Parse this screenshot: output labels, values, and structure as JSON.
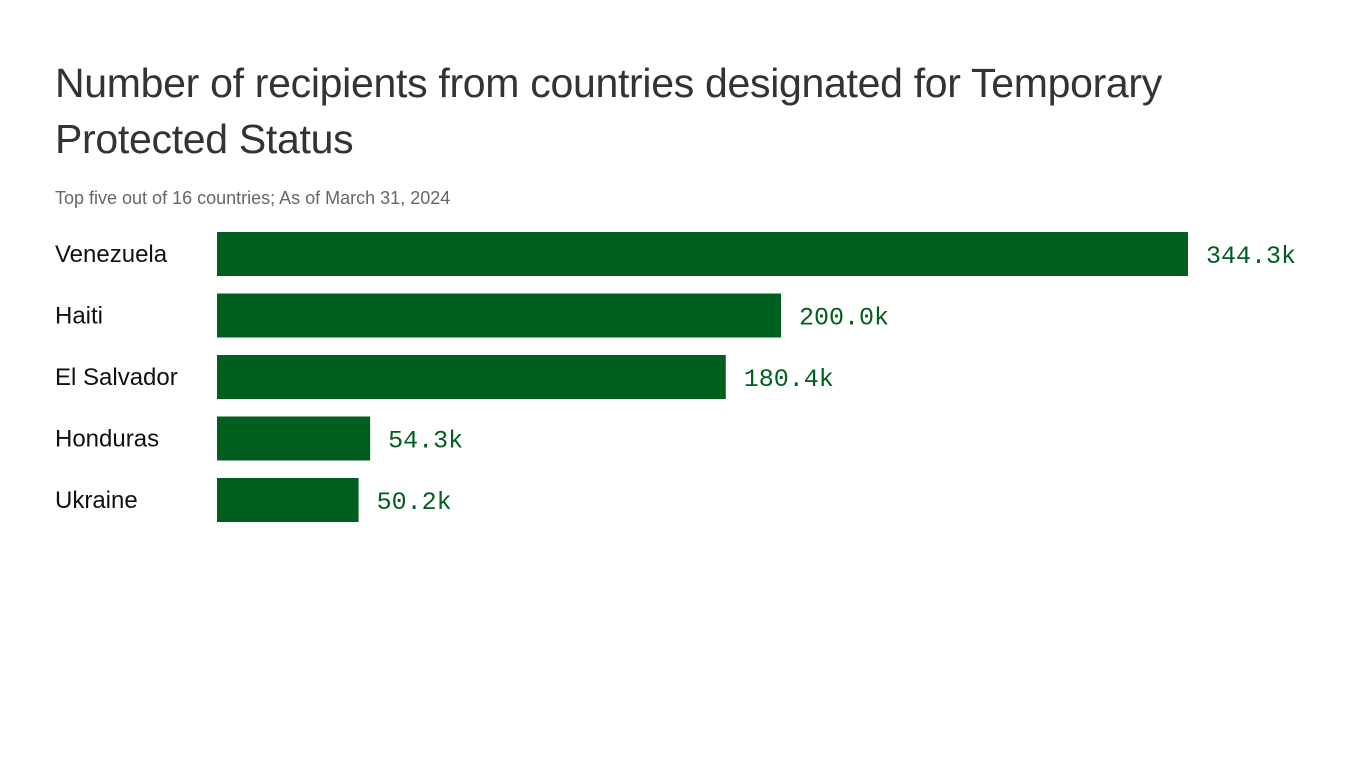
{
  "chart_data": {
    "type": "bar",
    "orientation": "horizontal",
    "title": "Number of recipients from countries designated for Temporary Protected Status",
    "subtitle": "Top five out of 16 countries; As of March 31, 2024",
    "categories": [
      "Venezuela",
      "Haiti",
      "El Salvador",
      "Honduras",
      "Ukraine"
    ],
    "values": [
      344.3,
      200.0,
      180.4,
      54.3,
      50.2
    ],
    "labels": [
      "344.3k",
      "200.0k",
      "180.4k",
      "54.3k",
      "50.2k"
    ],
    "unit": "thousands",
    "xlim": [
      0,
      344.3
    ],
    "grid": false,
    "color": "#005e1e"
  }
}
